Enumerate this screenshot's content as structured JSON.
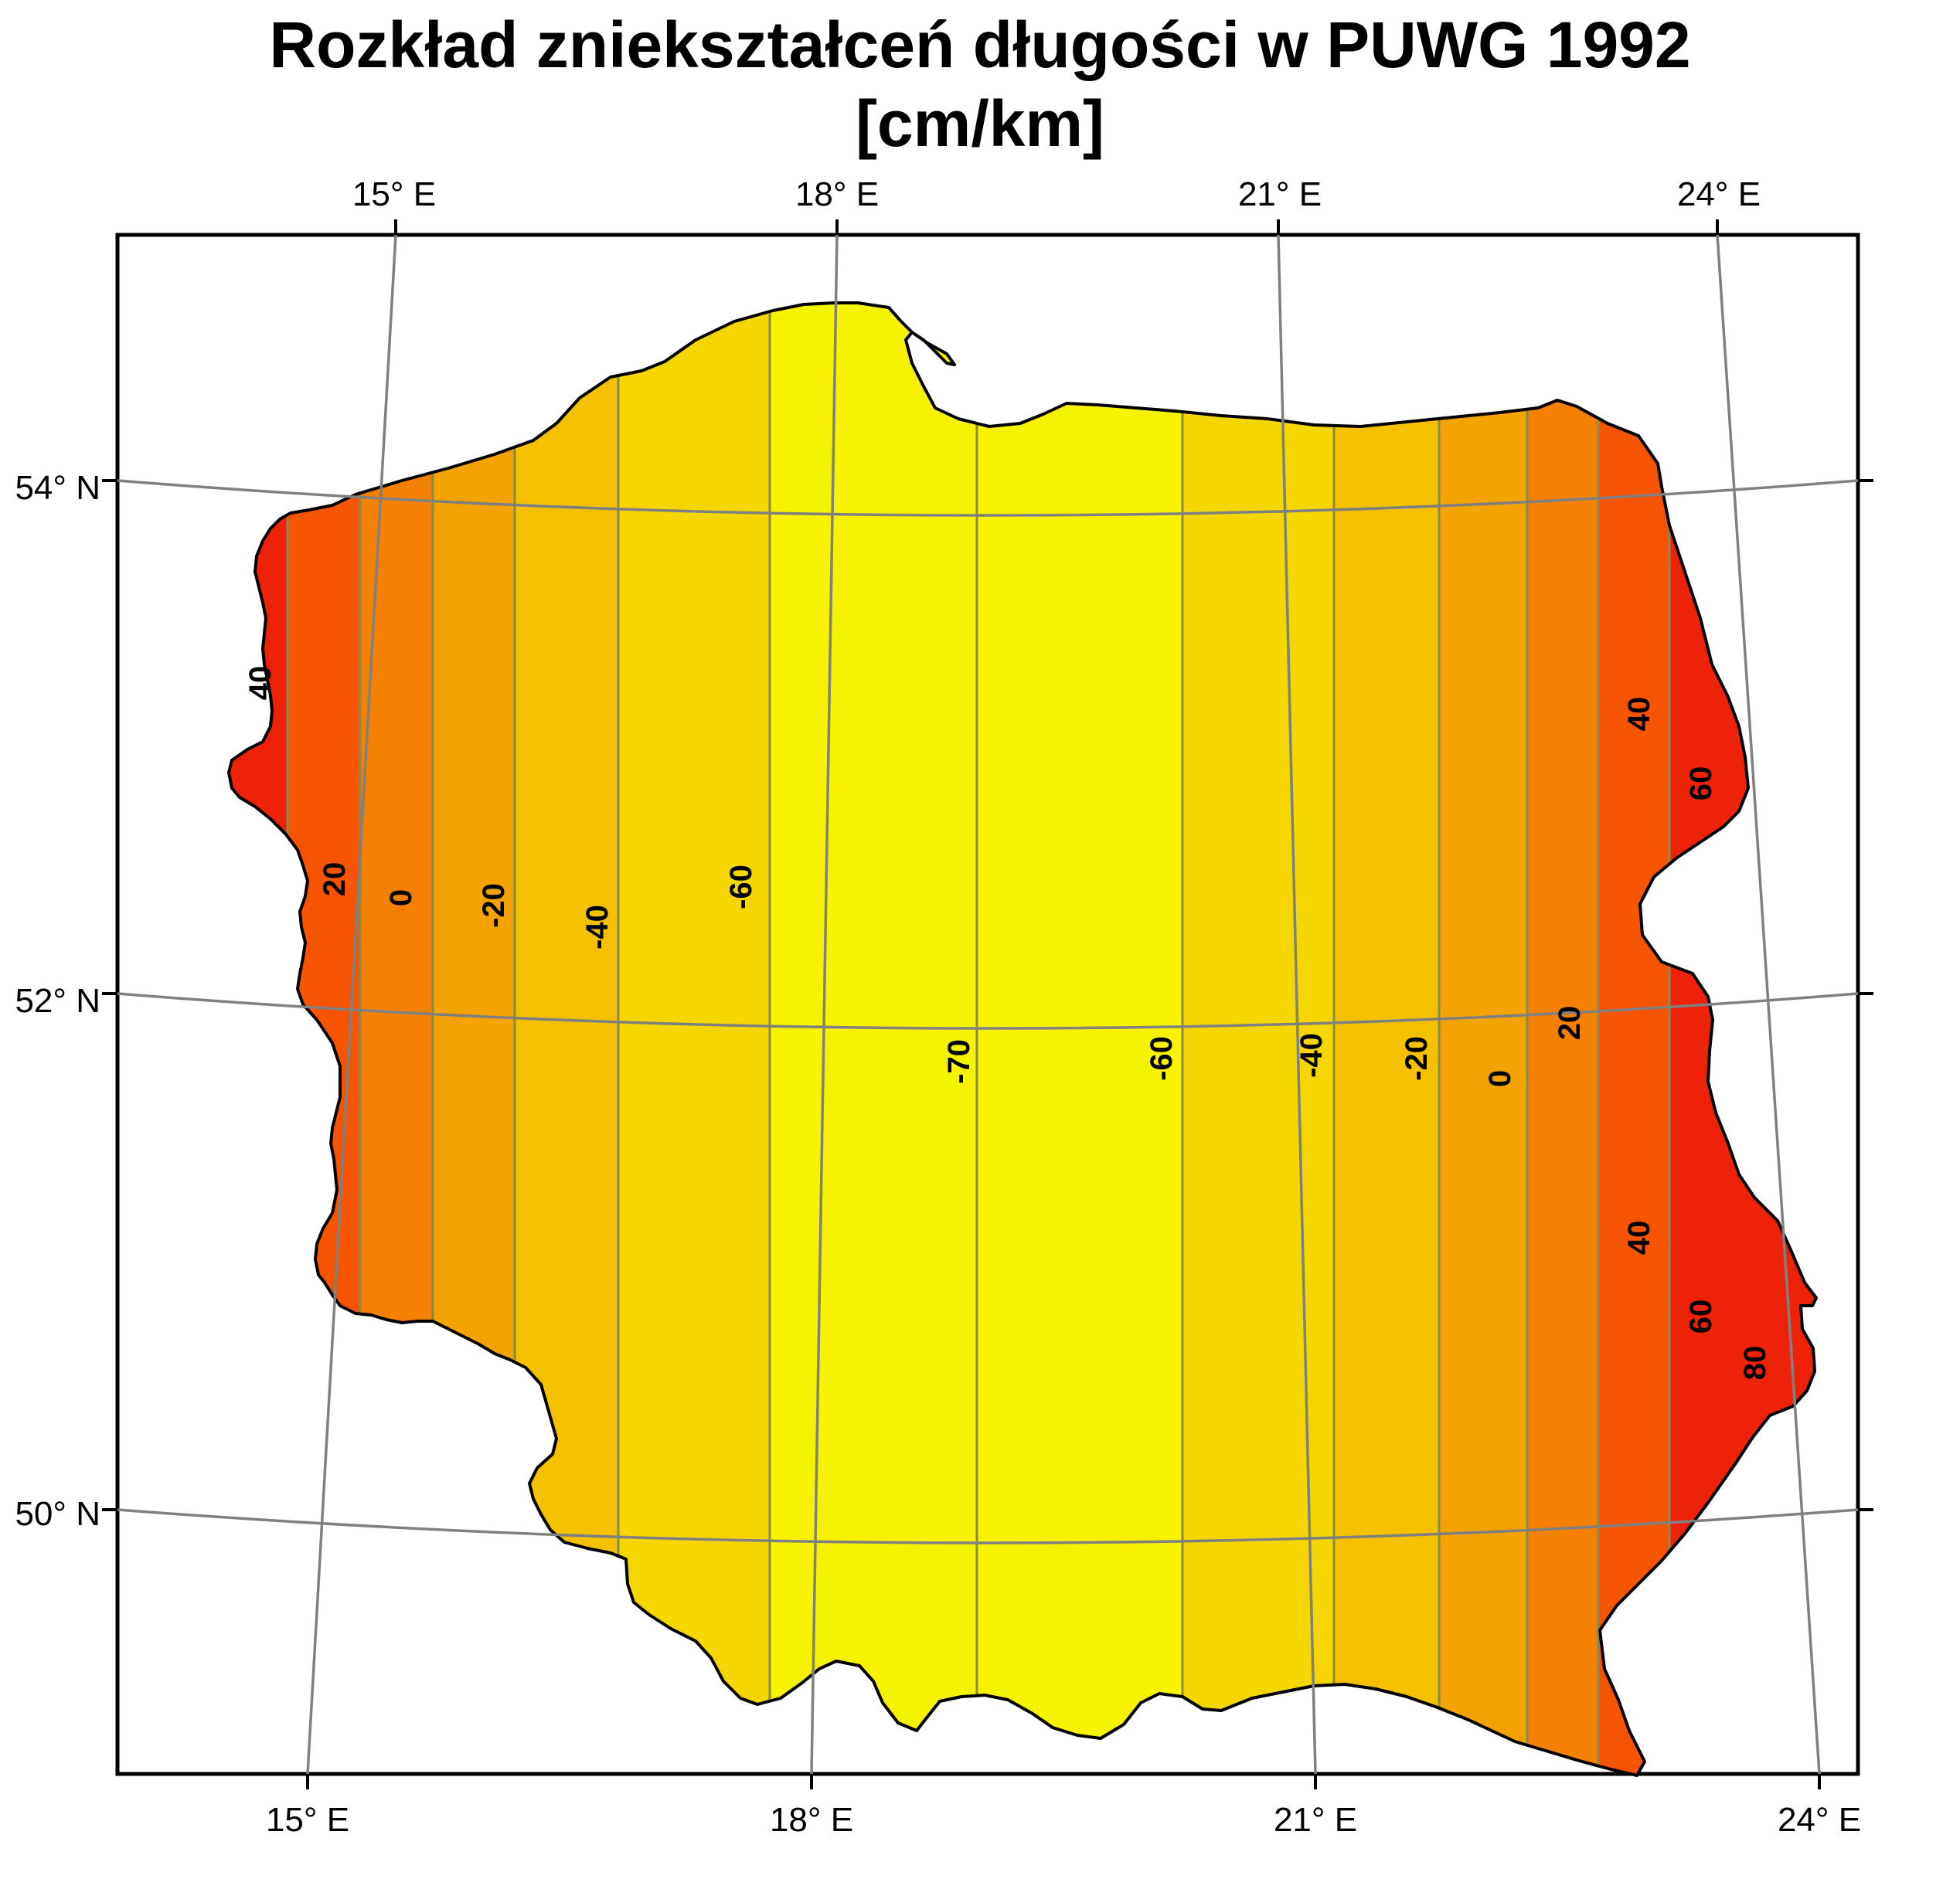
{
  "title": {
    "line1": "Rozkład zniekształceń długości w PUWG 1992",
    "line2": "[cm/km]"
  },
  "colors": {
    "band_colors": [
      "#ee2208",
      "#f65400",
      "#f38000",
      "#f3a300",
      "#f4c000",
      "#f5d600",
      "#f6f300"
    ],
    "contour_line": "#8a8a50",
    "graticule": "#808080",
    "frame": "#000000",
    "border": "#000000"
  },
  "graticule": {
    "top_labels": [
      "15° E",
      "18° E",
      "21° E",
      "24° E"
    ],
    "bottom_labels": [
      "15° E",
      "18° E",
      "21° E",
      "24° E"
    ],
    "left_labels": [
      "54° N",
      "52° N",
      "50° N"
    ]
  },
  "contour_labels": [
    "40",
    "20",
    "0",
    "-20",
    "-40",
    "-60",
    "-70",
    "-60",
    "-40",
    "-20",
    "0",
    "20",
    "40",
    "60",
    "40",
    "60",
    "80"
  ],
  "map_data": {
    "type": "map",
    "subject": "Poland",
    "unit": "cm/km",
    "contour_values_west": [
      40,
      20,
      0,
      -20,
      -40,
      -60
    ],
    "central_value": -70,
    "contour_values_east": [
      -60,
      -40,
      -20,
      0,
      20,
      40,
      60,
      80
    ]
  }
}
